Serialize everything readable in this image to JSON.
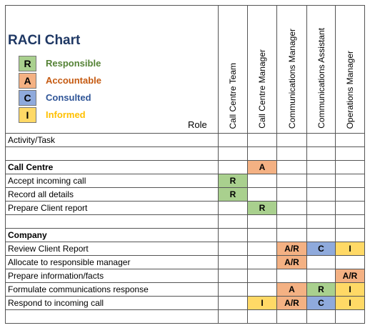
{
  "header": {
    "title": "RACI Chart",
    "role_label": "Role"
  },
  "legend": [
    {
      "code": "R",
      "label": "Responsible",
      "color": "#a9d08e",
      "text_color": "#548235"
    },
    {
      "code": "A",
      "label": "Accountable",
      "color": "#f4b183",
      "text_color": "#c55a11"
    },
    {
      "code": "C",
      "label": "Consulted",
      "color": "#8faadc",
      "text_color": "#2f5597"
    },
    {
      "code": "I",
      "label": "Informed",
      "color": "#ffd966",
      "text_color": "#ffc000"
    }
  ],
  "table": {
    "roles": [
      "Call Centre Team",
      "Call Centre Manager",
      "Communications Manager",
      "Communications Assistant",
      "Operations Manager"
    ],
    "rows": [
      {
        "activity": "Activity/Task",
        "cells": [
          null,
          null,
          null,
          null,
          null
        ]
      },
      {
        "activity": null,
        "cells": [
          null,
          null,
          null,
          null,
          null
        ]
      },
      {
        "activity": "Call Centre",
        "bold": true,
        "cells": [
          null,
          "A",
          null,
          null,
          null
        ]
      },
      {
        "activity": "Accept incoming call",
        "cells": [
          "R",
          null,
          null,
          null,
          null
        ]
      },
      {
        "activity": "Record all details",
        "cells": [
          "R",
          null,
          null,
          null,
          null
        ]
      },
      {
        "activity": "Prepare Client report",
        "cells": [
          null,
          "R",
          null,
          null,
          null
        ]
      },
      {
        "activity": null,
        "cells": [
          null,
          null,
          null,
          null,
          null
        ]
      },
      {
        "activity": "Company",
        "bold": true,
        "cells": [
          null,
          null,
          null,
          null,
          null
        ]
      },
      {
        "activity": "Review Client Report",
        "cells": [
          null,
          null,
          "A/R",
          "C",
          "I"
        ]
      },
      {
        "activity": "Allocate to responsible manager",
        "cells": [
          null,
          null,
          "A/R",
          null,
          null
        ]
      },
      {
        "activity": "Prepare information/facts",
        "cells": [
          null,
          null,
          null,
          null,
          "A/R"
        ]
      },
      {
        "activity": "Formulate communications response",
        "cells": [
          null,
          null,
          "A",
          "R",
          "I"
        ]
      },
      {
        "activity": "Respond to incoming call",
        "cells": [
          null,
          "I",
          "A/R",
          "C",
          "I"
        ]
      },
      {
        "activity": null,
        "cells": [
          null,
          null,
          null,
          null,
          null
        ]
      }
    ]
  }
}
